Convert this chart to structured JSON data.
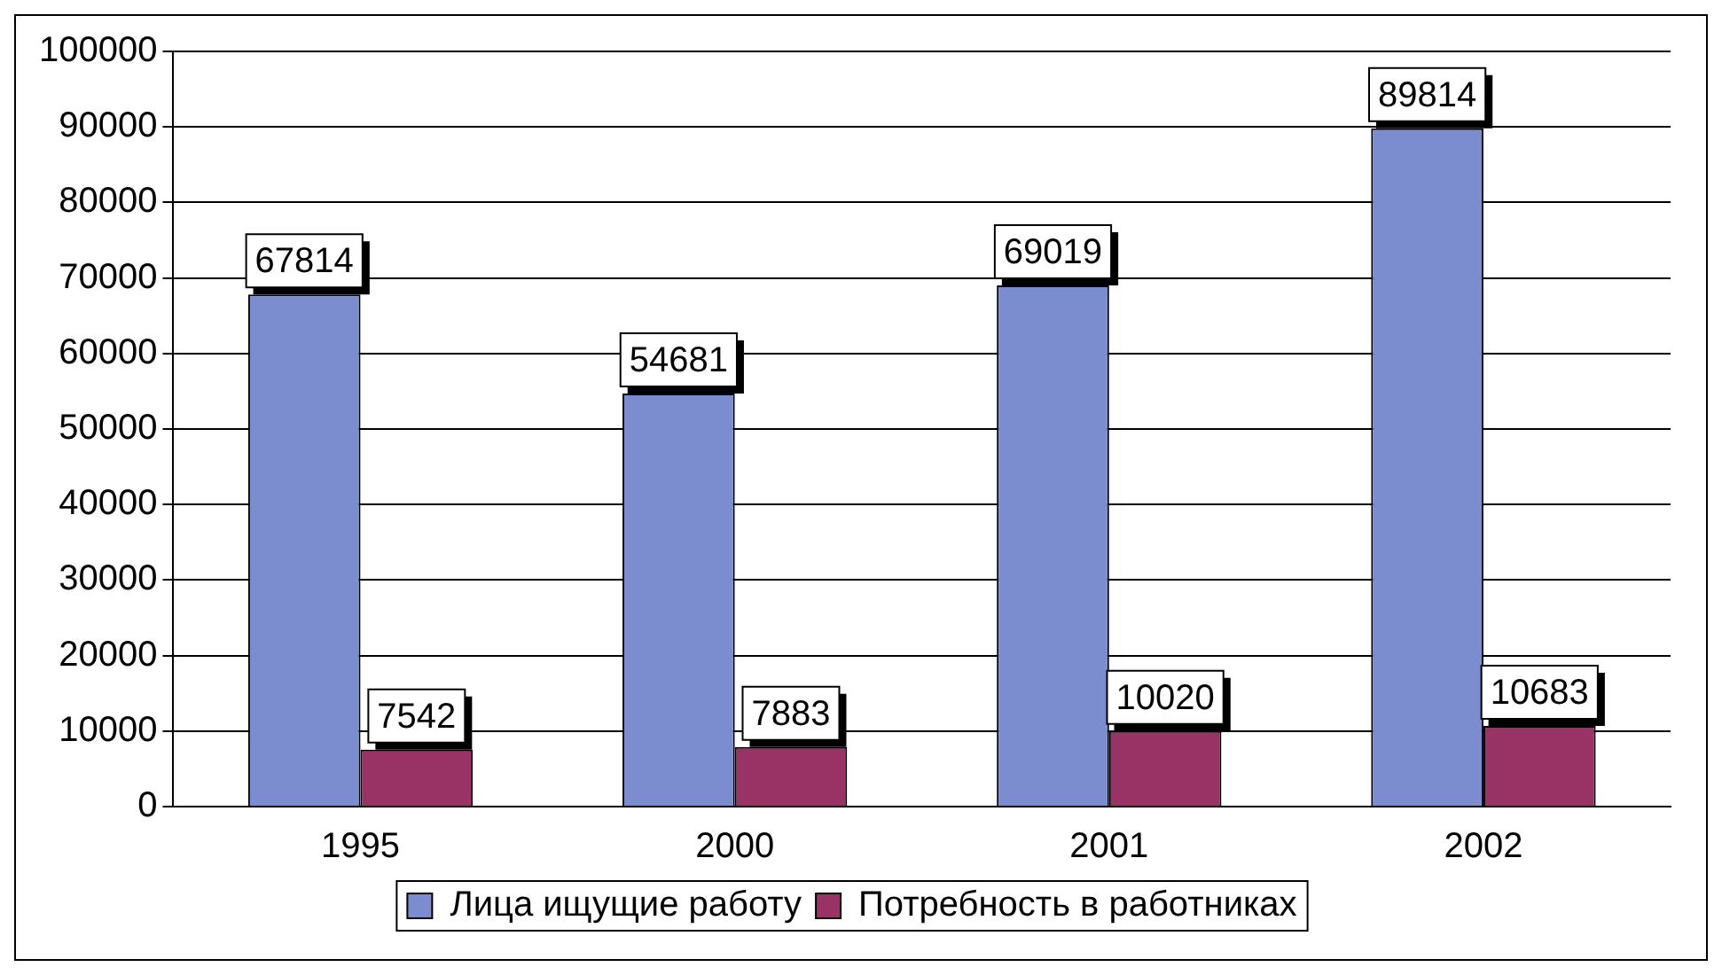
{
  "chart_data": {
    "type": "bar",
    "categories": [
      "1995",
      "2000",
      "2001",
      "2002"
    ],
    "series": [
      {
        "name": "Лица ищущие работу",
        "color": "#7b8dce",
        "values": [
          67814,
          54681,
          69019,
          89814
        ]
      },
      {
        "name": "Потребность в работниках",
        "color": "#993366",
        "values": [
          7542,
          7883,
          10020,
          10683
        ]
      }
    ],
    "ylim": [
      0,
      100000
    ],
    "yticks": [
      0,
      10000,
      20000,
      30000,
      40000,
      50000,
      60000,
      70000,
      80000,
      90000,
      100000
    ],
    "grid": "y",
    "legend": "bottom",
    "data_labels": true
  }
}
